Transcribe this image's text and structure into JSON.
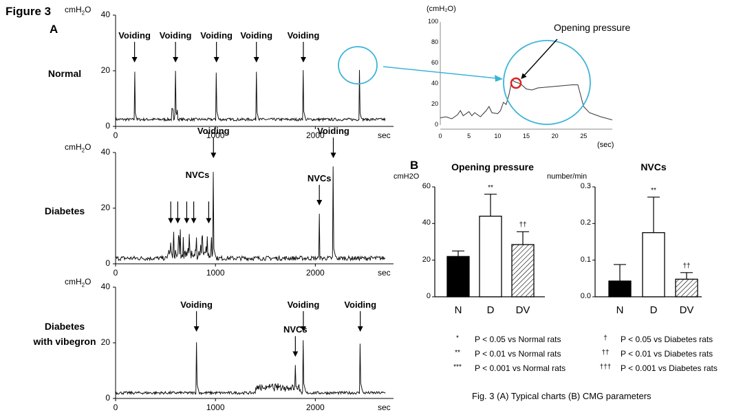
{
  "figure_label": "Figure 3",
  "panel_a_label": "A",
  "panel_b_label": "B",
  "unit_cmh2o": "cmH",
  "unit_sub": "2",
  "unit_o": "O",
  "caption": "Fig. 3 (A) Typical charts (B) CMG parameters",
  "traces": [
    {
      "name": "Normal",
      "lines": [
        "Normal"
      ],
      "y_ticks": [
        "40",
        "20",
        "0"
      ],
      "x_ticks": [
        "0",
        "1000",
        "2000",
        "sec"
      ],
      "voiding_times": [
        190,
        600,
        1010,
        1410,
        1880,
        2440
      ],
      "arrows": [
        {
          "label": "Voiding",
          "t": 190
        },
        {
          "label": "Voiding",
          "t": 600
        },
        {
          "label": "Voiding",
          "t": 1010
        },
        {
          "label": "Voiding",
          "t": 1410
        },
        {
          "label": "Voiding",
          "t": 1880
        }
      ]
    },
    {
      "name": "Diabetes",
      "lines": [
        "Diabetes"
      ],
      "y_ticks": [
        "40",
        "20",
        "0"
      ],
      "x_ticks": [
        "0",
        "1000",
        "2000",
        "sec"
      ],
      "voiding_times": [
        980,
        2180
      ],
      "arrows": [
        {
          "label": "Voiding",
          "t": 980
        },
        {
          "label": "Voiding",
          "t": 2180
        },
        {
          "label": "NVCs",
          "t": 2040
        }
      ],
      "nvc_group_label": "NVCs",
      "nvc_arrow_times": [
        580,
        650,
        740,
        810,
        960
      ]
    },
    {
      "name": "Diabetes with vibegron",
      "lines": [
        "Diabetes",
        "with vibegron"
      ],
      "y_ticks": [
        "40",
        "20",
        "0"
      ],
      "x_ticks": [
        "0",
        "1000",
        "2000",
        "sec"
      ],
      "voiding_times": [
        810,
        1880,
        2450
      ],
      "arrows": [
        {
          "label": "Voiding",
          "t": 810
        },
        {
          "label": "NVCs",
          "t": 1800
        },
        {
          "label": "Voiding",
          "t": 1880
        },
        {
          "label": "Voiding",
          "t": 2450
        }
      ]
    }
  ],
  "inset": {
    "unit": "(cmH₂O)",
    "y_ticks": [
      "100",
      "80",
      "60",
      "40",
      "20",
      "0"
    ],
    "x_ticks": [
      "0",
      "5",
      "10",
      "15",
      "20",
      "25"
    ],
    "x_unit": "(sec)",
    "annotation": "Opening pressure"
  },
  "chart_data": [
    {
      "type": "bar",
      "title": "Opening pressure",
      "ylabel": "cmH2O",
      "categories": [
        "N",
        "D",
        "DV"
      ],
      "values": [
        22,
        44,
        28.5
      ],
      "errors": [
        3,
        12,
        7
      ],
      "significance": [
        "",
        "**",
        "††"
      ],
      "ylim": [
        0,
        60
      ],
      "y_ticks": [
        "60",
        "40",
        "20",
        "0"
      ],
      "fills": [
        "#000000",
        "#ffffff",
        "hatched"
      ]
    },
    {
      "type": "bar",
      "title": "NVCs",
      "ylabel": "number/min",
      "categories": [
        "N",
        "D",
        "DV"
      ],
      "values": [
        0.043,
        0.175,
        0.048
      ],
      "errors": [
        0.045,
        0.097,
        0.018
      ],
      "significance": [
        "",
        "**",
        "††"
      ],
      "ylim": [
        0,
        0.3
      ],
      "y_ticks": [
        "0.3",
        "0.2",
        "0.1",
        "0.0"
      ],
      "fills": [
        "#000000",
        "#ffffff",
        "hatched"
      ]
    }
  ],
  "legend": [
    {
      "sym": "*",
      "text": "P < 0.05 vs Normal rats"
    },
    {
      "sym": "**",
      "text": "P < 0.01 vs Normal rats"
    },
    {
      "sym": "***",
      "text": "P < 0.001 vs Normal rats"
    },
    {
      "sym": "†",
      "text": "P < 0.05 vs Diabetes rats"
    },
    {
      "sym": "††",
      "text": "P < 0.01 vs Diabetes rats"
    },
    {
      "sym": "†††",
      "text": "P < 0.001 vs Diabetes rats"
    }
  ],
  "colors": {
    "trace": "#111111",
    "highlight": "#3bb3d8",
    "marker": "#e02020",
    "axis": "#000000"
  }
}
